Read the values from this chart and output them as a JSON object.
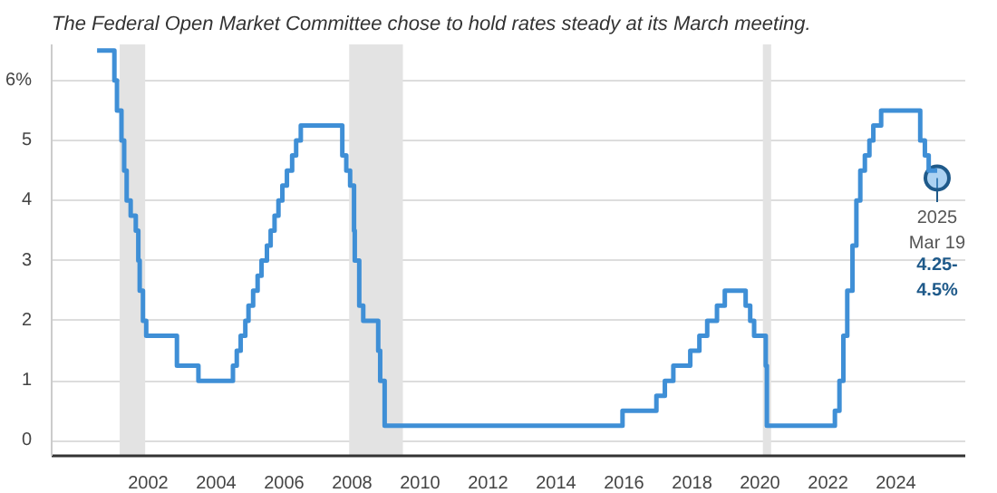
{
  "chart_data": {
    "type": "step",
    "title": "The Federal Open Market Committee chose to hold rates steady at its March meeting.",
    "series": [
      {
        "color": "#3f8fd6",
        "line_style": "solid",
        "marker": "none",
        "x": [
          "2000-07-01",
          "2001-01-03",
          "2001-01-31",
          "2001-03-20",
          "2001-04-18",
          "2001-05-15",
          "2001-06-27",
          "2001-08-21",
          "2001-09-17",
          "2001-10-02",
          "2001-11-06",
          "2001-12-11",
          "2002-11-06",
          "2003-06-25",
          "2004-06-30",
          "2004-08-10",
          "2004-09-21",
          "2004-11-10",
          "2004-12-14",
          "2005-02-02",
          "2005-03-22",
          "2005-05-03",
          "2005-06-30",
          "2005-08-09",
          "2005-09-20",
          "2005-11-01",
          "2005-12-13",
          "2006-01-31",
          "2006-03-28",
          "2006-05-10",
          "2006-06-29",
          "2007-09-18",
          "2007-10-31",
          "2007-12-11",
          "2008-01-22",
          "2008-01-30",
          "2008-03-18",
          "2008-04-30",
          "2008-10-08",
          "2008-10-29",
          "2008-12-16",
          "2015-12-16",
          "2016-12-14",
          "2017-03-15",
          "2017-06-14",
          "2017-12-13",
          "2018-03-21",
          "2018-06-13",
          "2018-09-26",
          "2018-12-19",
          "2019-07-31",
          "2019-09-18",
          "2019-10-30",
          "2020-03-03",
          "2020-03-15",
          "2022-03-16",
          "2022-05-04",
          "2022-06-15",
          "2022-07-27",
          "2022-09-21",
          "2022-11-02",
          "2022-12-14",
          "2023-02-01",
          "2023-03-22",
          "2023-05-03",
          "2023-07-26",
          "2024-09-18",
          "2024-11-07",
          "2024-12-18",
          "2025-03-19"
        ],
        "values": [
          6.5,
          6.0,
          5.5,
          5.0,
          4.5,
          4.0,
          3.75,
          3.5,
          3.0,
          2.5,
          2.0,
          1.75,
          1.25,
          1.0,
          1.25,
          1.5,
          1.75,
          2.0,
          2.25,
          2.5,
          2.75,
          3.0,
          3.25,
          3.5,
          3.75,
          4.0,
          4.25,
          4.5,
          4.75,
          5.0,
          5.25,
          4.75,
          4.5,
          4.25,
          3.5,
          3.0,
          2.25,
          2.0,
          1.5,
          1.0,
          0.25,
          0.5,
          0.75,
          1.0,
          1.25,
          1.5,
          1.75,
          2.0,
          2.25,
          2.5,
          2.25,
          2.0,
          1.75,
          1.25,
          0.25,
          0.5,
          1.0,
          1.75,
          2.5,
          3.25,
          4.0,
          4.5,
          4.75,
          5.0,
          5.25,
          5.5,
          5.0,
          4.75,
          4.5,
          4.5
        ]
      }
    ],
    "xlim": [
      "1999-03-01",
      "2026-01-15"
    ],
    "xticks": [
      "2002",
      "2004",
      "2006",
      "2008",
      "2010",
      "2012",
      "2014",
      "2016",
      "2018",
      "2020",
      "2022",
      "2024"
    ],
    "ylim": [
      -0.25,
      6.6
    ],
    "yticks": [
      0,
      1,
      2,
      3,
      4,
      5,
      {
        "value": 6,
        "label": "6%"
      }
    ],
    "grid": "y",
    "bands": [
      {
        "axis": "x",
        "from": "2001-03-01",
        "to": "2001-11-30",
        "color": "#e3e3e3"
      },
      {
        "axis": "x",
        "from": "2007-12-01",
        "to": "2009-06-30",
        "color": "#e3e3e3"
      },
      {
        "axis": "x",
        "from": "2020-02-01",
        "to": "2020-04-30",
        "color": "#e3e3e3"
      }
    ],
    "annotations": [
      {
        "text": "2025\nMar 19\n4.25-\n4.5%",
        "x": "2025-03-19",
        "y": 4.375
      }
    ]
  }
}
